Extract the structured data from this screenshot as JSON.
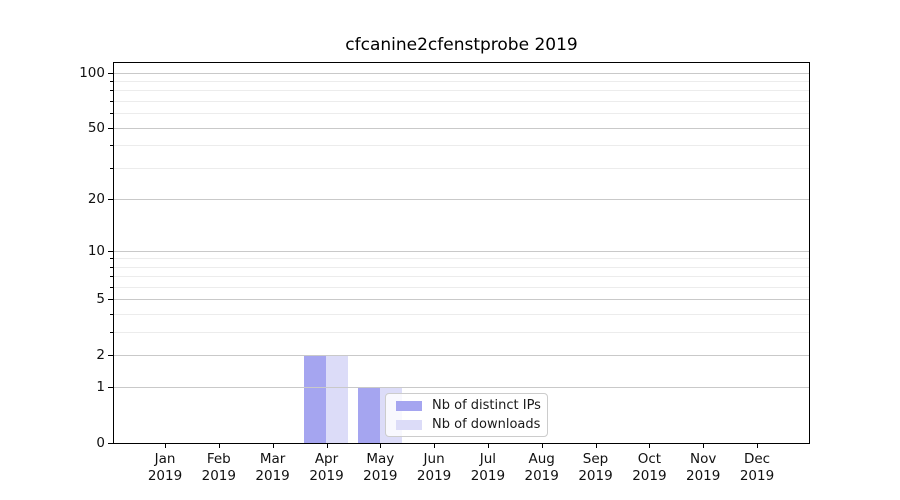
{
  "title": "cfcanine2cfenstprobe 2019",
  "chart_data": {
    "type": "bar",
    "title": "cfcanine2cfenstprobe 2019",
    "categories": [
      {
        "month": "Jan",
        "year": "2019"
      },
      {
        "month": "Feb",
        "year": "2019"
      },
      {
        "month": "Mar",
        "year": "2019"
      },
      {
        "month": "Apr",
        "year": "2019"
      },
      {
        "month": "May",
        "year": "2019"
      },
      {
        "month": "Jun",
        "year": "2019"
      },
      {
        "month": "Jul",
        "year": "2019"
      },
      {
        "month": "Aug",
        "year": "2019"
      },
      {
        "month": "Sep",
        "year": "2019"
      },
      {
        "month": "Oct",
        "year": "2019"
      },
      {
        "month": "Nov",
        "year": "2019"
      },
      {
        "month": "Dec",
        "year": "2019"
      }
    ],
    "series": [
      {
        "name": "Nb of distinct IPs",
        "color": "#a5a5f0",
        "values": [
          0,
          0,
          0,
          2,
          1,
          0,
          0,
          0,
          0,
          0,
          0,
          0
        ]
      },
      {
        "name": "Nb of downloads",
        "color": "#dcdcf8",
        "values": [
          0,
          0,
          0,
          2,
          1,
          0,
          0,
          0,
          0,
          0,
          0,
          0
        ]
      }
    ],
    "yscale": "log1p",
    "ylim": [
      0,
      113
    ],
    "y_major_ticks": [
      0,
      1,
      2,
      5,
      10,
      20,
      50,
      100
    ],
    "y_minor_ticks": [
      3,
      4,
      6,
      7,
      8,
      9,
      30,
      40,
      60,
      70,
      80,
      90
    ],
    "grid": "horizontal-only",
    "legend_position": "lower right inside plot"
  },
  "colors": {
    "spine": "#000000",
    "grid_major": "#c9c9c9",
    "grid_minor": "#ececec",
    "legend_border": "#cccccc",
    "background": "#ffffff",
    "text": "#111111"
  }
}
